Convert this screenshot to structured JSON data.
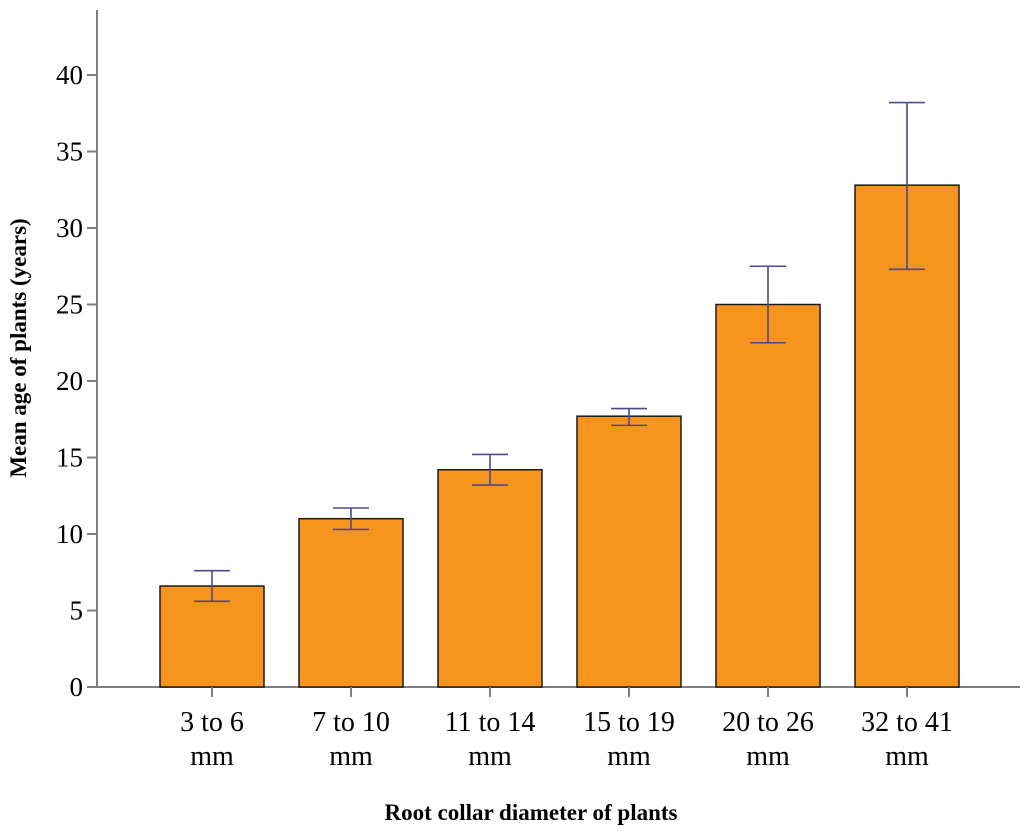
{
  "chart_data": {
    "type": "bar",
    "title": "",
    "xlabel": "Root collar diameter of plants",
    "ylabel": "Mean age of plants (years)",
    "categories": [
      [
        "3 to 6",
        "mm"
      ],
      [
        "7 to 10",
        "mm"
      ],
      [
        "11 to 14",
        "mm"
      ],
      [
        "15 to 19",
        "mm"
      ],
      [
        "20 to 26",
        "mm"
      ],
      [
        "32 to 41",
        "mm"
      ]
    ],
    "values": [
      6.6,
      11.0,
      14.2,
      17.7,
      25.0,
      32.8
    ],
    "error_low": [
      5.6,
      10.3,
      13.2,
      17.1,
      22.5,
      27.3
    ],
    "error_high": [
      7.6,
      11.7,
      15.2,
      18.2,
      27.5,
      38.2
    ],
    "yticks": [
      0,
      5,
      10,
      15,
      20,
      25,
      30,
      35,
      40
    ],
    "ylim": [
      0,
      44
    ],
    "grid": false,
    "colors": {
      "bar": "#f7941d",
      "bar_edge": "#1a1a1a",
      "error_bar": "#4a4a8c",
      "axis": "#7f7f7f"
    }
  }
}
